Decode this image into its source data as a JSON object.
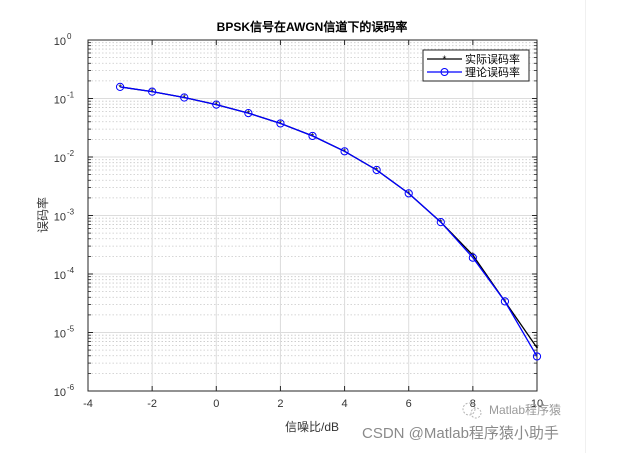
{
  "chart_data": {
    "type": "line",
    "title": "BPSK信号在AWGN信道下的误码率",
    "xlabel": "信噪比/dB",
    "ylabel": "误码率",
    "xscale": "linear",
    "yscale": "log",
    "xlim": [
      -4,
      10
    ],
    "ylim": [
      1e-06,
      1
    ],
    "xticks": [
      -4,
      -2,
      0,
      2,
      4,
      6,
      8,
      10
    ],
    "yticks": [
      "10^0",
      "10^-1",
      "10^-2",
      "10^-3",
      "10^-4",
      "10^-5",
      "10^-6"
    ],
    "grid": true,
    "minor_grid": true,
    "legend_position": "northeast",
    "x": [
      -3,
      -2,
      -1,
      0,
      1,
      2,
      3,
      4,
      5,
      6,
      7,
      8,
      9,
      10
    ],
    "series": [
      {
        "name": "实际误码率",
        "color": "#000000",
        "marker": "*",
        "values": [
          0.158,
          0.131,
          0.104,
          0.0787,
          0.0563,
          0.0376,
          0.0229,
          0.0125,
          0.006,
          0.00239,
          0.00077,
          0.00021,
          3.4e-05,
          5.5e-06
        ]
      },
      {
        "name": "理论误码率",
        "color": "#0000ff",
        "marker": "o",
        "values": [
          0.158,
          0.131,
          0.104,
          0.0786,
          0.0563,
          0.0375,
          0.0229,
          0.0125,
          0.006,
          0.00239,
          0.00077,
          0.00019,
          3.4e-05,
          3.9e-06
        ]
      }
    ]
  },
  "figure": {
    "title": "BPSK信号在AWGN信道下的误码率",
    "xlabel": "信噪比/dB",
    "ylabel": "误码率",
    "xtick_labels": [
      "-4",
      "-2",
      "0",
      "2",
      "4",
      "6",
      "8",
      "10"
    ],
    "ytick_base": "10",
    "ytick_exponents": [
      "0",
      "-1",
      "-2",
      "-3",
      "-4",
      "-5",
      "-6"
    ],
    "legend": [
      "实际误码率",
      "理论误码率"
    ]
  },
  "watermark": {
    "line1": "Matlab程序猿",
    "line2": "CSDN @Matlab程序猿小助手"
  }
}
